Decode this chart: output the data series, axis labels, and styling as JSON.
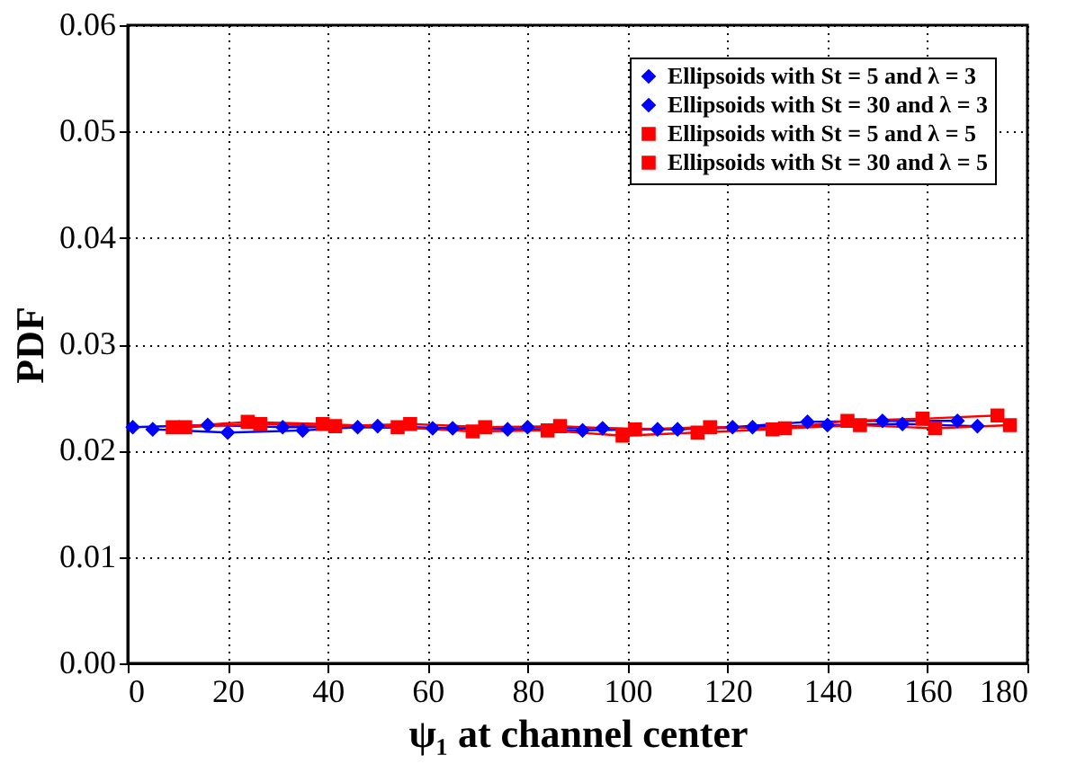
{
  "chart_data": {
    "type": "line",
    "xlabel": "ψ₁ at channel center",
    "ylabel": "PDF",
    "series": [
      {
        "name": "Ellipsoids with St = 5 and λ = 3",
        "color": "#0000ff",
        "marker": "diamond",
        "x": [
          1,
          16,
          31,
          46,
          61,
          76,
          91,
          106,
          121,
          136,
          151,
          166
        ],
        "values": [
          0.0222,
          0.0224,
          0.0222,
          0.0222,
          0.0221,
          0.022,
          0.0219,
          0.022,
          0.0222,
          0.0227,
          0.0228,
          0.0228
        ]
      },
      {
        "name": "Ellipsoids with St = 30 and λ = 3",
        "color": "#0000ff",
        "marker": "diamond",
        "x": [
          5,
          20,
          35,
          50,
          65,
          80,
          95,
          110,
          125,
          140,
          155,
          170
        ],
        "values": [
          0.022,
          0.0217,
          0.0219,
          0.0223,
          0.0221,
          0.0222,
          0.0221,
          0.022,
          0.0222,
          0.0224,
          0.0225,
          0.0223
        ]
      },
      {
        "name": "Ellipsoids with St = 5 and λ = 5",
        "color": "#ff0000",
        "marker": "square",
        "x": [
          9,
          24,
          39,
          54,
          69,
          84,
          99,
          114,
          129,
          144,
          159,
          174
        ],
        "values": [
          0.0222,
          0.0227,
          0.0225,
          0.0222,
          0.0218,
          0.0219,
          0.0214,
          0.0217,
          0.022,
          0.0228,
          0.023,
          0.0233
        ]
      },
      {
        "name": "Ellipsoids with St = 30 and λ = 5",
        "color": "#ff0000",
        "marker": "square",
        "x": [
          11.5,
          26.5,
          41.5,
          56.5,
          71.5,
          86.5,
          101.5,
          116.5,
          131.5,
          146.5,
          161.5,
          176.5
        ],
        "values": [
          0.0222,
          0.0225,
          0.0223,
          0.0225,
          0.0222,
          0.0223,
          0.022,
          0.0222,
          0.0221,
          0.0224,
          0.0221,
          0.0224
        ]
      }
    ],
    "xlim": [
      0,
      180
    ],
    "xticks": [
      0,
      20,
      40,
      60,
      80,
      100,
      120,
      140,
      160,
      180
    ],
    "ylim": [
      0,
      0.06
    ],
    "yticks": [
      {
        "value": 0,
        "label": "0.00"
      },
      {
        "value": 0.01,
        "label": "0.01"
      },
      {
        "value": 0.02,
        "label": "0.02"
      },
      {
        "value": 0.03,
        "label": "0.03"
      },
      {
        "value": 0.04,
        "label": "0.04"
      },
      {
        "value": 0.05,
        "label": "0.05"
      },
      {
        "value": 0.06,
        "label": "0.06"
      }
    ],
    "grid": true,
    "legend": "top right",
    "line_style": "solid"
  }
}
